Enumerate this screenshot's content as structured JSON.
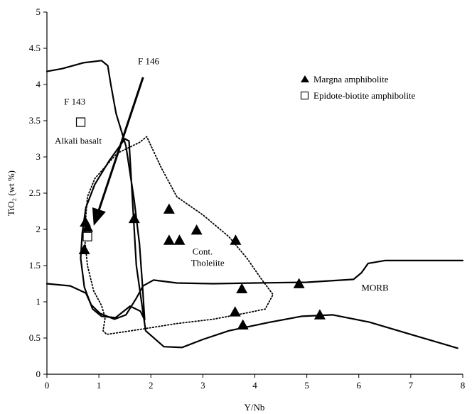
{
  "chart_data": {
    "type": "scatter",
    "xlabel": "Y/Nb",
    "ylabel": "TiO₂ (wt %)",
    "xlim": [
      0,
      8
    ],
    "ylim": [
      0,
      5
    ],
    "xticks": [
      "0",
      "1",
      "2",
      "3",
      "4",
      "5",
      "6",
      "7",
      "8"
    ],
    "yticks": [
      "0",
      "0.5",
      "1",
      "1.5",
      "2",
      "2.5",
      "3",
      "3.5",
      "4",
      "4.5",
      "5"
    ],
    "grid": false,
    "legend_position": "top-right",
    "series": [
      {
        "name": "Margna amphibolite",
        "marker": "filled-triangle",
        "points": [
          [
            0.72,
            1.72
          ],
          [
            0.74,
            2.1
          ],
          [
            0.78,
            2.03
          ],
          [
            1.68,
            2.15
          ],
          [
            2.35,
            2.28
          ],
          [
            2.35,
            1.85
          ],
          [
            2.55,
            1.85
          ],
          [
            2.88,
            1.99
          ],
          [
            3.63,
            1.85
          ],
          [
            3.75,
            1.18
          ],
          [
            3.62,
            0.86
          ],
          [
            3.77,
            0.68
          ],
          [
            4.85,
            1.25
          ],
          [
            5.25,
            0.82
          ]
        ]
      },
      {
        "name": "Epidote-biotite amphibolite",
        "marker": "open-square",
        "points": [
          [
            0.65,
            3.48
          ],
          [
            0.78,
            1.9
          ]
        ]
      }
    ],
    "fields": [
      {
        "label": "Alkali basalt",
        "style": "solid",
        "label_at": [
          0.15,
          3.18
        ],
        "points": [
          [
            0,
            4.18
          ],
          [
            0.3,
            4.22
          ],
          [
            0.7,
            4.3
          ],
          [
            1.05,
            4.33
          ],
          [
            1.17,
            4.26
          ],
          [
            1.23,
            4.0
          ],
          [
            1.33,
            3.6
          ],
          [
            1.52,
            3.15
          ],
          [
            1.68,
            2.4
          ],
          [
            1.78,
            1.8
          ],
          [
            1.84,
            1.2
          ],
          [
            1.88,
            0.75
          ],
          [
            1.8,
            0.87
          ],
          [
            1.6,
            0.94
          ],
          [
            1.32,
            0.78
          ],
          [
            1.05,
            0.8
          ],
          [
            0.88,
            0.9
          ],
          [
            0.72,
            1.2
          ],
          [
            0.65,
            1.6
          ],
          [
            0.68,
            1.95
          ],
          [
            0.75,
            2.3
          ],
          [
            0.92,
            2.62
          ],
          [
            1.2,
            2.95
          ],
          [
            1.5,
            3.25
          ],
          [
            1.58,
            3.22
          ],
          [
            1.72,
            1.5
          ],
          [
            1.9,
            0.6
          ],
          [
            2.25,
            0.38
          ],
          [
            2.6,
            0.37
          ],
          [
            3.0,
            0.48
          ],
          [
            3.5,
            0.6
          ],
          [
            4.3,
            0.72
          ],
          [
            4.9,
            0.8
          ],
          [
            5.5,
            0.82
          ],
          [
            6.2,
            0.72
          ],
          [
            7.0,
            0.55
          ],
          [
            7.9,
            0.36
          ]
        ]
      },
      {
        "label": "MORB",
        "style": "solid",
        "label_at": [
          6.05,
          1.15
        ],
        "points": [
          [
            0,
            1.25
          ],
          [
            0.45,
            1.22
          ],
          [
            0.75,
            1.12
          ],
          [
            0.85,
            0.96
          ],
          [
            1.02,
            0.84
          ],
          [
            1.3,
            0.76
          ],
          [
            1.52,
            0.82
          ],
          [
            1.72,
            1.05
          ],
          [
            1.85,
            1.22
          ],
          [
            2.05,
            1.3
          ],
          [
            2.5,
            1.26
          ],
          [
            3.2,
            1.25
          ],
          [
            4.0,
            1.26
          ],
          [
            5.0,
            1.27
          ],
          [
            5.9,
            1.31
          ],
          [
            6.05,
            1.4
          ],
          [
            6.18,
            1.53
          ],
          [
            6.5,
            1.57
          ],
          [
            7.2,
            1.57
          ],
          [
            8.0,
            1.57
          ]
        ]
      },
      {
        "label": "Cont. Tholeiite",
        "style": "dotted",
        "label_at": [
          2.8,
          1.65
        ],
        "points": [
          [
            0.72,
            1.92
          ],
          [
            0.78,
            2.45
          ],
          [
            0.92,
            2.7
          ],
          [
            1.35,
            3.05
          ],
          [
            1.78,
            3.2
          ],
          [
            1.92,
            3.28
          ],
          [
            2.2,
            2.85
          ],
          [
            2.5,
            2.45
          ],
          [
            3.0,
            2.2
          ],
          [
            3.5,
            1.9
          ],
          [
            3.85,
            1.6
          ],
          [
            4.12,
            1.32
          ],
          [
            4.35,
            1.1
          ],
          [
            4.2,
            0.9
          ],
          [
            3.8,
            0.84
          ],
          [
            3.2,
            0.76
          ],
          [
            2.5,
            0.7
          ],
          [
            1.8,
            0.62
          ],
          [
            1.15,
            0.55
          ],
          [
            1.08,
            0.6
          ],
          [
            1.12,
            0.78
          ],
          [
            1.05,
            0.95
          ],
          [
            0.9,
            1.15
          ],
          [
            0.78,
            1.5
          ],
          [
            0.72,
            1.92
          ]
        ]
      }
    ],
    "annotations": [
      {
        "label": "F 146",
        "label_at": [
          1.75,
          4.28
        ],
        "arrow_from": [
          1.85,
          4.1
        ],
        "arrow_to": [
          0.9,
          2.05
        ]
      },
      {
        "label": "F 143",
        "label_at": [
          0.33,
          3.72
        ]
      }
    ],
    "cont_tholeiite_lines": [
      "Cont.",
      "Tholeiite"
    ]
  }
}
